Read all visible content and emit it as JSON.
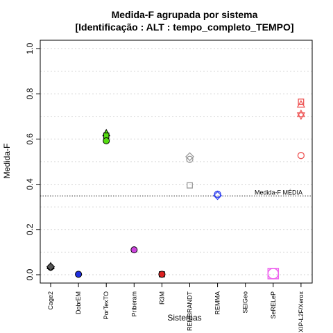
{
  "chart_data": {
    "type": "scatter",
    "title": "Medida-F agrupada por sistema",
    "subtitle": "[Identificação : ALT : tempo_completo_TEMPO]",
    "xlabel": "Sistemas",
    "ylabel": "Medida-F",
    "ylim": [
      0,
      1
    ],
    "yticks": [
      "0.0",
      "0.2",
      "0.4",
      "0.6",
      "0.8",
      "1.0"
    ],
    "grid": true,
    "categories": [
      "Cage2",
      "DobrEM",
      "PorTexTO",
      "Priberam",
      "R3M",
      "REMBRANDT",
      "REMMA",
      "SEIGeo",
      "SeRELeP",
      "XIP-L2F/Xerox"
    ],
    "mean_line": {
      "label": "Medida-F MÉDIA",
      "value": 0.348
    },
    "points": [
      {
        "category": "Cage2",
        "y": 0.037,
        "shape": "triangle",
        "color": "#555555",
        "filled": true
      },
      {
        "category": "Cage2",
        "y": 0.033,
        "shape": "circle",
        "color": "#555555",
        "filled": true
      },
      {
        "category": "Cage2",
        "y": 0.035,
        "shape": "diamond",
        "color": "#555555",
        "filled": true
      },
      {
        "category": "DobrEM",
        "y": 0.002,
        "shape": "circle",
        "color": "#1f2fe0",
        "filled": true
      },
      {
        "category": "PorTexTO",
        "y": 0.625,
        "shape": "triangle",
        "color": "#55dd11",
        "filled": true
      },
      {
        "category": "PorTexTO",
        "y": 0.615,
        "shape": "square",
        "color": "#55dd11",
        "filled": true
      },
      {
        "category": "PorTexTO",
        "y": 0.592,
        "shape": "circle",
        "color": "#55dd11",
        "filled": true
      },
      {
        "category": "Priberam",
        "y": 0.11,
        "shape": "circle",
        "color": "#cc44dd",
        "filled": true
      },
      {
        "category": "R3M",
        "y": 0.002,
        "shape": "square",
        "color": "#dd2222",
        "filled": true
      },
      {
        "category": "R3M",
        "y": 0.002,
        "shape": "circle",
        "color": "#dd2222",
        "filled": true
      },
      {
        "category": "REMBRANDT",
        "y": 0.522,
        "shape": "diamond",
        "color": "#999999",
        "filled": false
      },
      {
        "category": "REMBRANDT",
        "y": 0.51,
        "shape": "circle",
        "color": "#999999",
        "filled": false
      },
      {
        "category": "REMBRANDT",
        "y": 0.395,
        "shape": "square",
        "color": "#999999",
        "filled": false
      },
      {
        "category": "REMMA",
        "y": 0.356,
        "shape": "circle",
        "color": "#3344ee",
        "filled": false
      },
      {
        "category": "REMMA",
        "y": 0.35,
        "shape": "diamond",
        "color": "#3344ee",
        "filled": false
      },
      {
        "category": "SeRELeP",
        "y": 0.005,
        "shape": "big-square",
        "color": "#ee66ee",
        "filled": false
      },
      {
        "category": "SeRELeP",
        "y": 0.005,
        "shape": "big-circle",
        "color": "#ee66ee",
        "filled": false
      },
      {
        "category": "XIP-L2F/Xerox",
        "y": 0.765,
        "shape": "square",
        "color": "#ee5555",
        "filled": false
      },
      {
        "category": "XIP-L2F/Xerox",
        "y": 0.752,
        "shape": "triangle",
        "color": "#ee5555",
        "filled": false
      },
      {
        "category": "XIP-L2F/Xerox",
        "y": 0.71,
        "shape": "triangle",
        "color": "#ee5555",
        "filled": false
      },
      {
        "category": "XIP-L2F/Xerox",
        "y": 0.705,
        "shape": "triangle-down",
        "color": "#ee5555",
        "filled": false
      },
      {
        "category": "XIP-L2F/Xerox",
        "y": 0.527,
        "shape": "circle",
        "color": "#ee5555",
        "filled": false
      }
    ]
  }
}
